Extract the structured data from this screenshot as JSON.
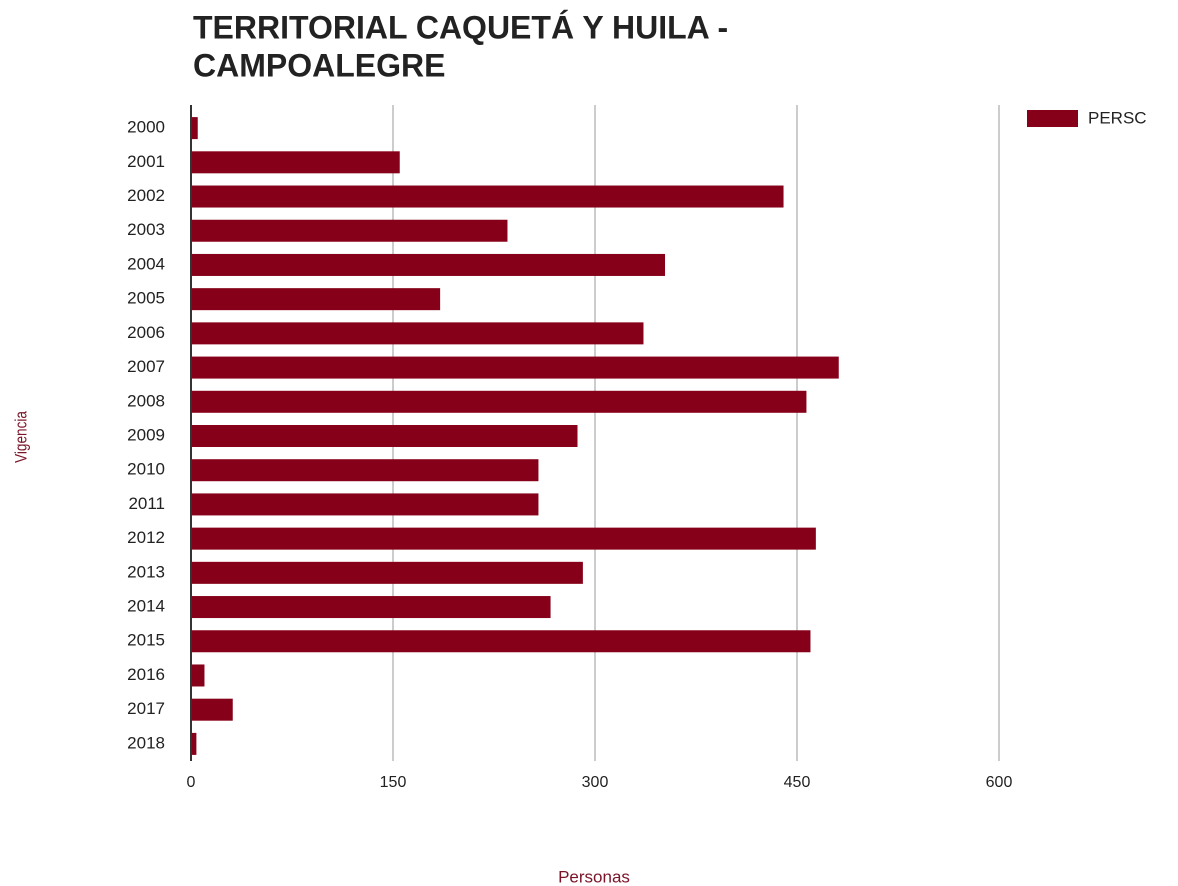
{
  "chart_data": {
    "type": "bar",
    "orientation": "horizontal",
    "title": [
      "TERRITORIAL CAQUETÁ Y HUILA -",
      "CAMPOALEGRE"
    ],
    "x_label": "Personas",
    "y_label": "Vigencia",
    "categories": [
      "2000",
      "2001",
      "2002",
      "2003",
      "2004",
      "2005",
      "2006",
      "2007",
      "2008",
      "2009",
      "2010",
      "2011",
      "2012",
      "2013",
      "2014",
      "2015",
      "2016",
      "2017",
      "2018"
    ],
    "series": [
      {
        "name": "PERSC",
        "color": "#850018",
        "values": [
          5,
          155,
          440,
          235,
          352,
          185,
          336,
          481,
          457,
          287,
          258,
          258,
          464,
          291,
          267,
          460,
          10,
          31,
          4
        ]
      }
    ],
    "xlim": [
      0,
      600
    ],
    "xticks": [
      0,
      150,
      300,
      450,
      600
    ],
    "grid": true,
    "legend": "top-right"
  }
}
